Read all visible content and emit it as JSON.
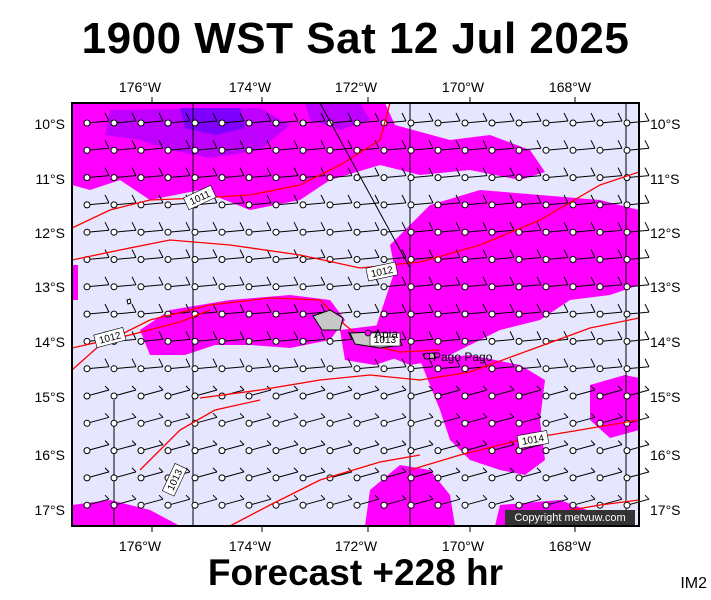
{
  "header": {
    "title": "1900 WST Sat 12 Jul 2025"
  },
  "footer": {
    "forecast": "Forecast +228 hr",
    "code": "IM2"
  },
  "map": {
    "lon_ticks": [
      "176°W",
      "174°W",
      "172°W",
      "170°W",
      "168°W"
    ],
    "lat_ticks": [
      "10°S",
      "11°S",
      "12°S",
      "13°S",
      "14°S",
      "15°S",
      "16°S",
      "17°S"
    ],
    "isobar_labels": [
      "1011",
      "1012",
      "1012",
      "1013",
      "1013",
      "1014"
    ],
    "places": [
      "Apia",
      "Pago Pago"
    ],
    "copyright": "Copyright metvuw.com"
  },
  "colors": {
    "background_shade": "#e6e6ff",
    "rain_light": "#ff00ff",
    "rain_medium": "#c000ff",
    "rain_heavy": "#7f00ff",
    "isobar": "#ff0000"
  }
}
